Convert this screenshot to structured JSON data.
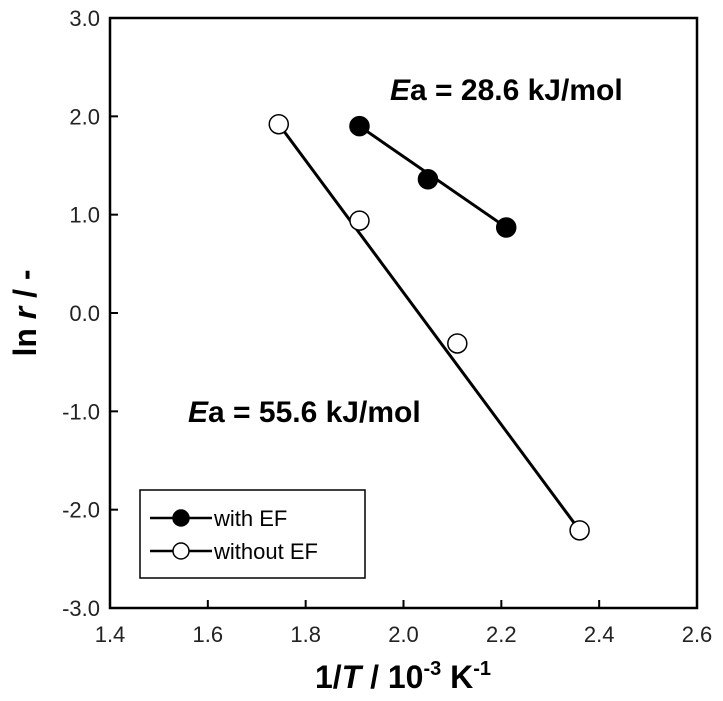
{
  "chart_data": {
    "type": "scatter",
    "xlabel": {
      "pre": "1/",
      "var": "T",
      "mid": " / 10",
      "sup1": "-3",
      "post": " K",
      "sup2": "-1"
    },
    "ylabel": {
      "pre": "ln ",
      "var": "r",
      "post": " / -"
    },
    "xlim": [
      1.4,
      2.6
    ],
    "ylim": [
      -3.0,
      3.0
    ],
    "x_ticks": [
      "1.4",
      "1.6",
      "1.8",
      "2.0",
      "2.2",
      "2.4",
      "2.6"
    ],
    "y_ticks": [
      "3.0",
      "2.0",
      "1.0",
      "0.0",
      "-1.0",
      "-2.0",
      "-3.0"
    ],
    "grid": false,
    "series": [
      {
        "name": "with EF",
        "marker": "filled-circle",
        "color": "#000000",
        "x": [
          1.91,
          2.05,
          2.21
        ],
        "y": [
          1.9,
          1.36,
          0.87
        ],
        "fit": {
          "x": [
            1.91,
            2.21
          ],
          "y": [
            1.9,
            0.87
          ]
        }
      },
      {
        "name": "without EF",
        "marker": "open-circle",
        "color": "#000000",
        "x": [
          1.745,
          1.91,
          2.11,
          2.36
        ],
        "y": [
          1.92,
          0.94,
          -0.31,
          -2.21
        ],
        "fit": {
          "x": [
            1.745,
            2.36
          ],
          "y": [
            1.92,
            -2.21
          ]
        }
      }
    ],
    "annotations": [
      {
        "var": "E",
        "text": "a = 28.6 kJ/mol",
        "series": "with EF"
      },
      {
        "var": "E",
        "text": "a = 55.6 kJ/mol",
        "series": "without EF"
      }
    ],
    "legend": {
      "position": "bottom-left",
      "entries": [
        "with EF",
        "without EF"
      ]
    }
  }
}
